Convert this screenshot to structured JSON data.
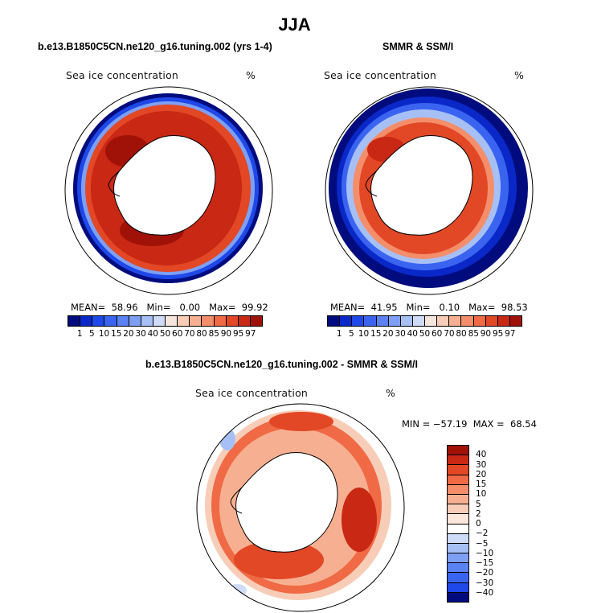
{
  "main_title": "JJA",
  "panels": {
    "model": {
      "title": "b.e13.B1850C5CN.ne120_g16.tuning.002 (yrs 1-4)",
      "label": "Sea ice concentration",
      "unit": "%",
      "stats": "MEAN=  58.96   Min=   0.00   Max=  99.92"
    },
    "obs": {
      "title": "SMMR & SSM/I",
      "label": "Sea ice concentration",
      "unit": "%",
      "stats": "MEAN=  41.95   Min=   0.10   Max=  98.53"
    },
    "diff": {
      "title": "b.e13.B1850C5CN.ne120_g16.tuning.002 - SMMR & SSM/I",
      "label": "Sea ice concentration",
      "unit": "%",
      "stats": "MIN = −57.19  MAX =  68.54"
    }
  },
  "colorbars": {
    "concentration": {
      "ticks": [
        "1",
        "5",
        "10",
        "15",
        "20",
        "30",
        "40",
        "50",
        "60",
        "70",
        "80",
        "85",
        "90",
        "95",
        "97"
      ],
      "colors": [
        "#000c7e",
        "#0a28c8",
        "#1e48e8",
        "#3a64f0",
        "#5a82f2",
        "#7ea0f4",
        "#a6c0f6",
        "#cedcf8",
        "#f6e6de",
        "#f8cdb8",
        "#f6b091",
        "#f48e6a",
        "#ef6a45",
        "#e24726",
        "#c82814",
        "#a01208"
      ]
    },
    "difference": {
      "ticks": [
        "40",
        "30",
        "20",
        "15",
        "10",
        "5",
        "2",
        "0",
        "−2",
        "−5",
        "−10",
        "−15",
        "−20",
        "−30",
        "−40"
      ],
      "colors": [
        "#a01208",
        "#c82814",
        "#e24726",
        "#ef6a45",
        "#f48e6a",
        "#f6b091",
        "#f8cdb8",
        "#fbe6dc",
        "#ffffff",
        "#cedcf8",
        "#a6c0f6",
        "#7ea0f4",
        "#5a82f2",
        "#3a64f0",
        "#1e48e8",
        "#000c7e"
      ]
    }
  }
}
